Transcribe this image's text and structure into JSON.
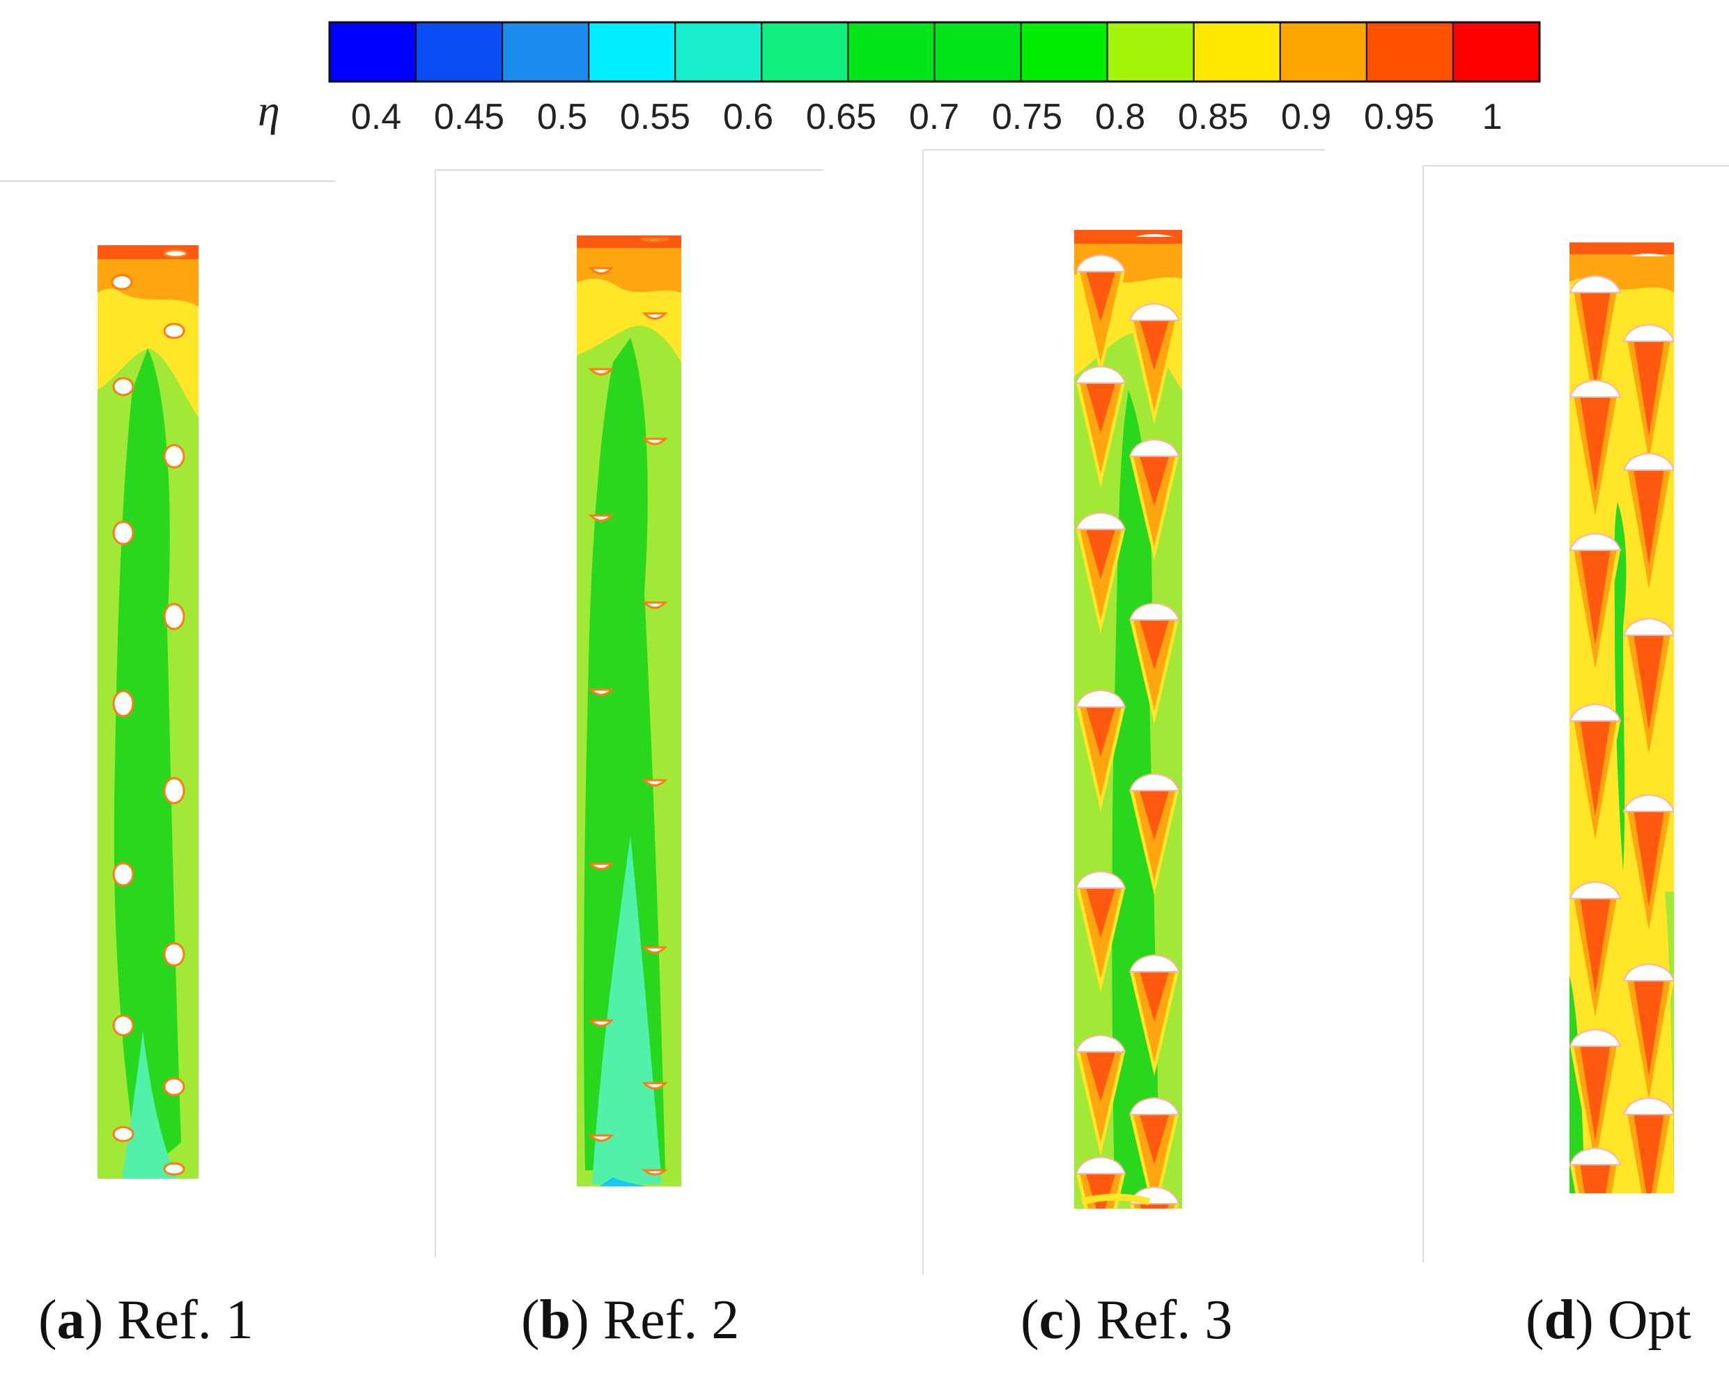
{
  "colorbar": {
    "symbol": "η",
    "ticks": [
      "0.4",
      "0.45",
      "0.5",
      "0.55",
      "0.6",
      "0.65",
      "0.7",
      "0.75",
      "0.8",
      "0.85",
      "0.9",
      "0.95",
      "1"
    ],
    "colors": [
      "#0000ff",
      "#0a4df5",
      "#1a8cf0",
      "#00eeff",
      "#18f0cc",
      "#10f080",
      "#00e51a",
      "#00e51a",
      "#00ee00",
      "#a4f50a",
      "#ffe800",
      "#ffa500",
      "#ff5000",
      "#ff0000"
    ]
  },
  "panels": [
    {
      "id": "a",
      "letter": "a",
      "label": "Ref. 1"
    },
    {
      "id": "b",
      "letter": "b",
      "label": "Ref. 2"
    },
    {
      "id": "c",
      "letter": "c",
      "label": "Ref. 3"
    },
    {
      "id": "d",
      "letter": "d",
      "label": "Opt"
    }
  ],
  "palette": {
    "base": "#a2e836",
    "core": "#29d81e",
    "low": "#52f0a8",
    "yellow": "#ffe628",
    "orange": "#ffa510",
    "red": "#ff5a10",
    "hole": "#ffffff"
  }
}
